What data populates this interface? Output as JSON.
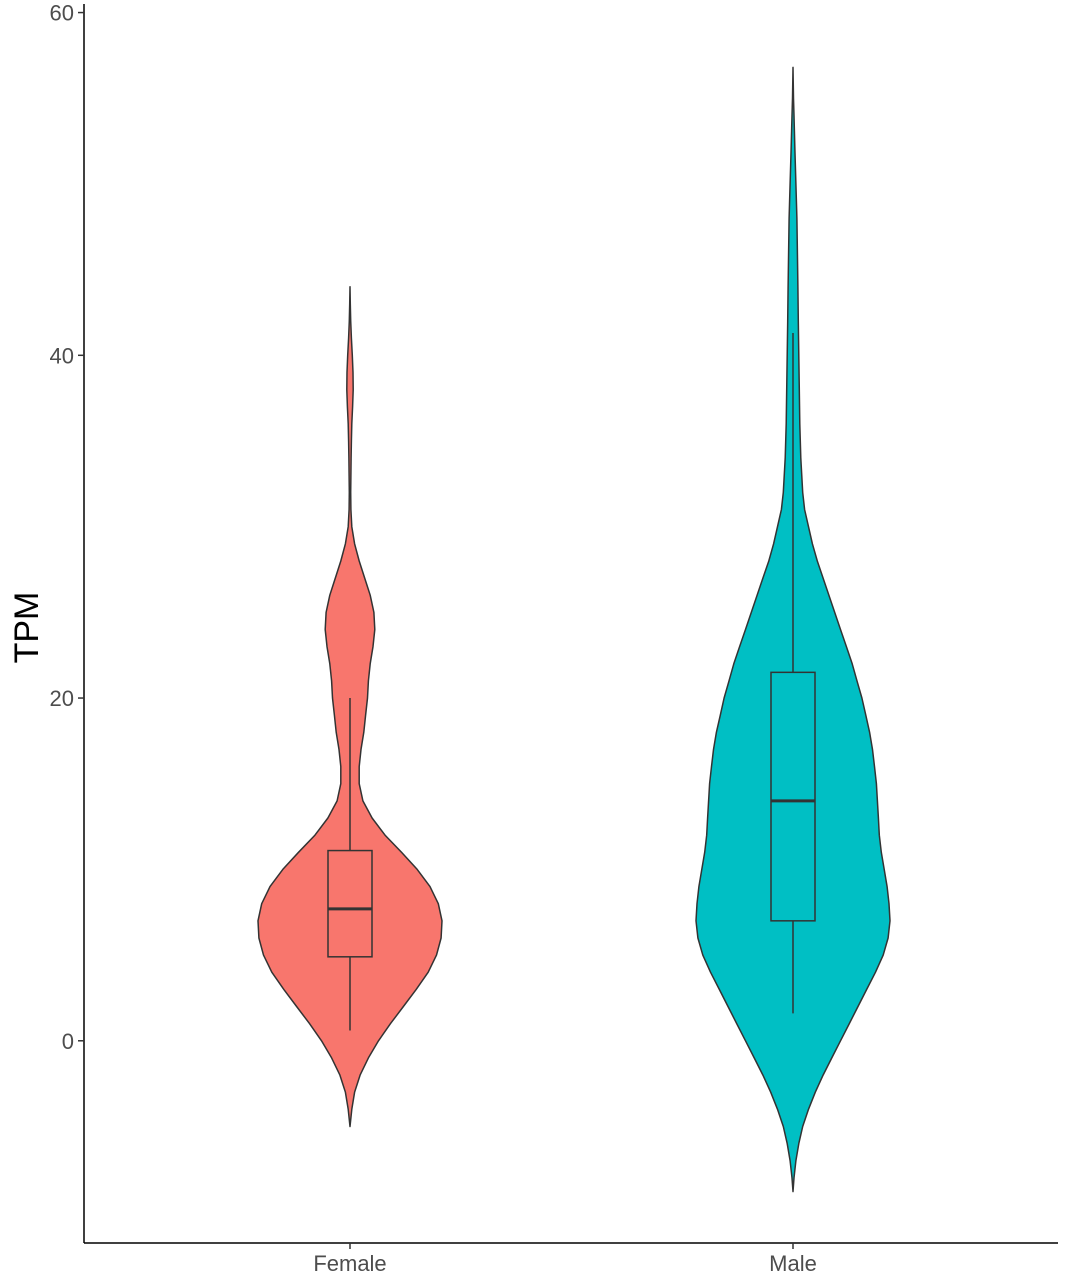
{
  "chart_data": {
    "type": "violin",
    "title": "",
    "xlabel": "",
    "ylabel": "TPM",
    "ylim": [
      -11.8,
      60.5
    ],
    "yticks": [
      "0",
      "20",
      "40",
      "60"
    ],
    "yticks_values": [
      0,
      20,
      40,
      60
    ],
    "grid": false,
    "legend": "none",
    "categories": [
      "Female",
      "Male"
    ],
    "series": [
      {
        "category": "Female",
        "color": "#F8766D",
        "density": [
          [
            -5.0,
            0.0
          ],
          [
            -4.0,
            0.02
          ],
          [
            -3.0,
            0.05
          ],
          [
            -2.0,
            0.11
          ],
          [
            -1.0,
            0.2
          ],
          [
            0.0,
            0.31
          ],
          [
            1.0,
            0.44
          ],
          [
            2.0,
            0.58
          ],
          [
            3.0,
            0.72
          ],
          [
            4.0,
            0.85
          ],
          [
            5.0,
            0.94
          ],
          [
            6.0,
            0.99
          ],
          [
            7.0,
            1.0
          ],
          [
            8.0,
            0.96
          ],
          [
            9.0,
            0.87
          ],
          [
            10.0,
            0.73
          ],
          [
            11.0,
            0.56
          ],
          [
            12.0,
            0.38
          ],
          [
            13.0,
            0.24
          ],
          [
            14.0,
            0.14
          ],
          [
            15.0,
            0.1
          ],
          [
            16.0,
            0.1
          ],
          [
            17.0,
            0.12
          ],
          [
            18.0,
            0.15
          ],
          [
            19.0,
            0.17
          ],
          [
            20.0,
            0.19
          ],
          [
            21.0,
            0.2
          ],
          [
            22.0,
            0.22
          ],
          [
            23.0,
            0.25
          ],
          [
            24.0,
            0.27
          ],
          [
            25.0,
            0.26
          ],
          [
            26.0,
            0.22
          ],
          [
            27.0,
            0.16
          ],
          [
            28.0,
            0.1
          ],
          [
            29.0,
            0.05
          ],
          [
            30.0,
            0.02
          ],
          [
            31.0,
            0.01
          ],
          [
            32.0,
            0.008
          ],
          [
            33.0,
            0.01
          ],
          [
            34.0,
            0.012
          ],
          [
            35.0,
            0.015
          ],
          [
            36.0,
            0.02
          ],
          [
            37.0,
            0.028
          ],
          [
            38.0,
            0.035
          ],
          [
            39.0,
            0.033
          ],
          [
            40.0,
            0.025
          ],
          [
            41.0,
            0.015
          ],
          [
            42.0,
            0.008
          ],
          [
            43.0,
            0.003
          ],
          [
            44.0,
            0.0
          ]
        ],
        "box": {
          "whisker_low": 0.6,
          "q1": 4.9,
          "median": 7.7,
          "q3": 11.1,
          "whisker_high": 20.0
        }
      },
      {
        "category": "Male",
        "color": "#00BFC4",
        "density": [
          [
            -8.8,
            0.0
          ],
          [
            -8.0,
            0.01
          ],
          [
            -7.0,
            0.03
          ],
          [
            -6.0,
            0.06
          ],
          [
            -5.0,
            0.1
          ],
          [
            -4.0,
            0.16
          ],
          [
            -3.0,
            0.23
          ],
          [
            -2.0,
            0.31
          ],
          [
            -1.0,
            0.4
          ],
          [
            0.0,
            0.49
          ],
          [
            1.0,
            0.58
          ],
          [
            2.0,
            0.67
          ],
          [
            3.0,
            0.76
          ],
          [
            4.0,
            0.85
          ],
          [
            5.0,
            0.93
          ],
          [
            6.0,
            0.98
          ],
          [
            7.0,
            1.0
          ],
          [
            8.0,
            0.99
          ],
          [
            9.0,
            0.97
          ],
          [
            10.0,
            0.94
          ],
          [
            11.0,
            0.91
          ],
          [
            12.0,
            0.89
          ],
          [
            13.0,
            0.88
          ],
          [
            14.0,
            0.87
          ],
          [
            15.0,
            0.86
          ],
          [
            16.0,
            0.84
          ],
          [
            17.0,
            0.82
          ],
          [
            18.0,
            0.79
          ],
          [
            19.0,
            0.75
          ],
          [
            20.0,
            0.71
          ],
          [
            21.0,
            0.66
          ],
          [
            22.0,
            0.61
          ],
          [
            23.0,
            0.55
          ],
          [
            24.0,
            0.49
          ],
          [
            25.0,
            0.43
          ],
          [
            26.0,
            0.37
          ],
          [
            27.0,
            0.31
          ],
          [
            28.0,
            0.25
          ],
          [
            29.0,
            0.2
          ],
          [
            30.0,
            0.16
          ],
          [
            31.0,
            0.12
          ],
          [
            32.0,
            0.1
          ],
          [
            34.0,
            0.08
          ],
          [
            36.0,
            0.07
          ],
          [
            38.0,
            0.065
          ],
          [
            40.0,
            0.06
          ],
          [
            42.0,
            0.055
          ],
          [
            44.0,
            0.05
          ],
          [
            46.0,
            0.045
          ],
          [
            48.0,
            0.04
          ],
          [
            50.0,
            0.03
          ],
          [
            52.0,
            0.02
          ],
          [
            54.0,
            0.01
          ],
          [
            55.0,
            0.005
          ],
          [
            56.8,
            0.0
          ]
        ],
        "box": {
          "whisker_low": 1.6,
          "q1": 7.0,
          "median": 14.0,
          "q3": 21.5,
          "whisker_high": 41.3
        }
      }
    ]
  }
}
